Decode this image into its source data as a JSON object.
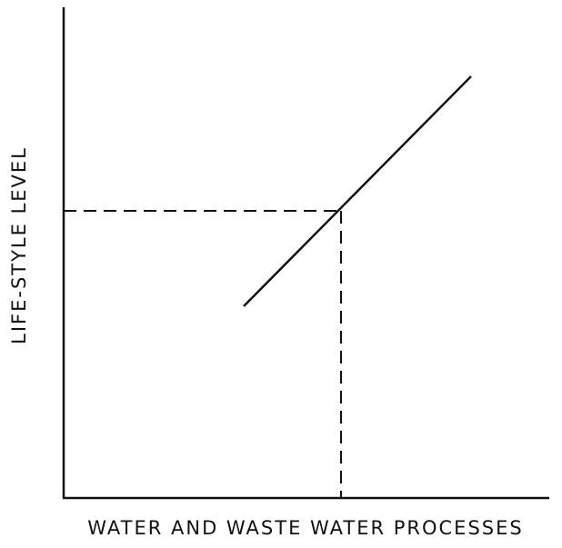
{
  "axes": {
    "x_label": "WATER AND WASTE WATER PROCESSES",
    "y_label": "LIFE-STYLE LEVEL"
  }
}
